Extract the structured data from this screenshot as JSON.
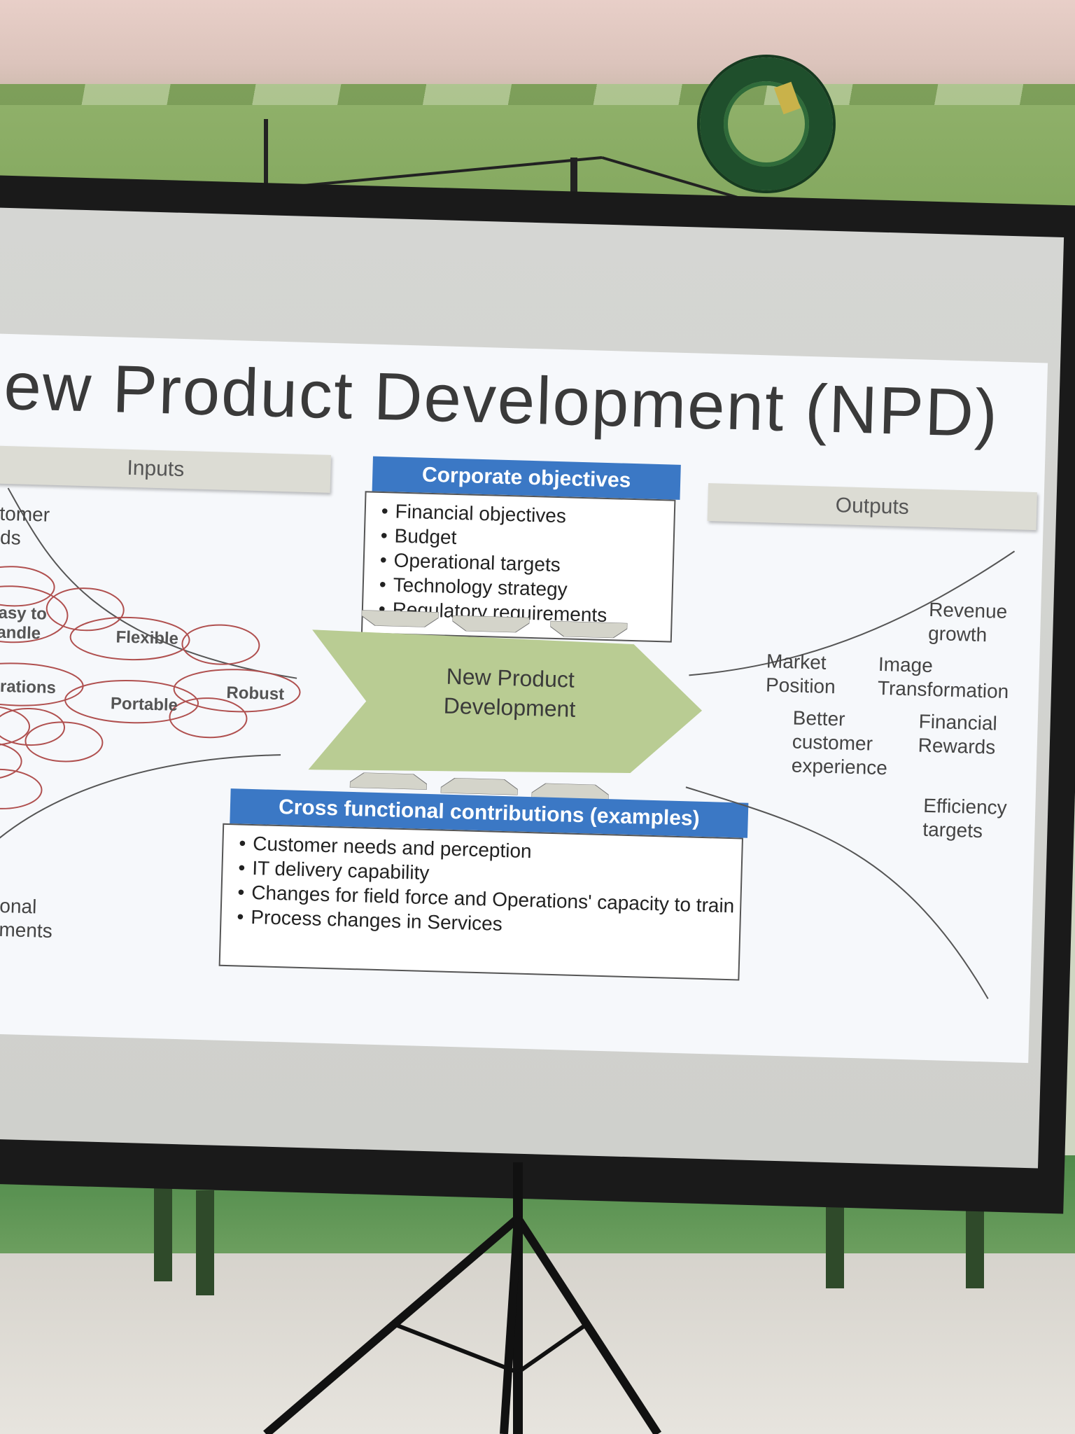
{
  "slide": {
    "title": "ew Product Development (NPD)",
    "inputs_label": "Inputs",
    "outputs_label": "Outputs",
    "center_label_line1": "New Product",
    "center_label_line2": "Development",
    "corporate": {
      "header": "Corporate objectives",
      "items": [
        "Financial objectives",
        "Budget",
        "Operational targets",
        "Technology strategy",
        "Regulatory requirements"
      ]
    },
    "cross": {
      "header": "Cross functional contributions (examples)",
      "items": [
        "Customer needs and perception",
        "IT delivery capability",
        "Changes for field force and Operations' capacity to train",
        "Process changes in Services"
      ]
    },
    "inputs_side": {
      "customer_line1": "stomer",
      "customer_line2": "eds",
      "easy_line1": "Easy to",
      "easy_line2": "handle",
      "flexible": "Flexible",
      "robust": "Robust",
      "portable": "Portable",
      "migrations": "igrations",
      "operational_line1": "ational",
      "operational_line2": "vements"
    },
    "outputs_side": {
      "revenue_line1": "Revenue",
      "revenue_line2": "growth",
      "market_line1": "Market",
      "market_line2": "Position",
      "image_line1": "Image",
      "image_line2": "Transformation",
      "better_line1": "Better",
      "better_line2": "customer",
      "better_line3": "experience",
      "financial_line1": "Financial",
      "financial_line2": "Rewards",
      "efficiency_line1": "Efficiency",
      "efficiency_line2": "targets"
    }
  },
  "colors": {
    "header_blue": "#3b78c5",
    "arrow_green": "#b9cc93",
    "oval_red": "#b0504f"
  }
}
